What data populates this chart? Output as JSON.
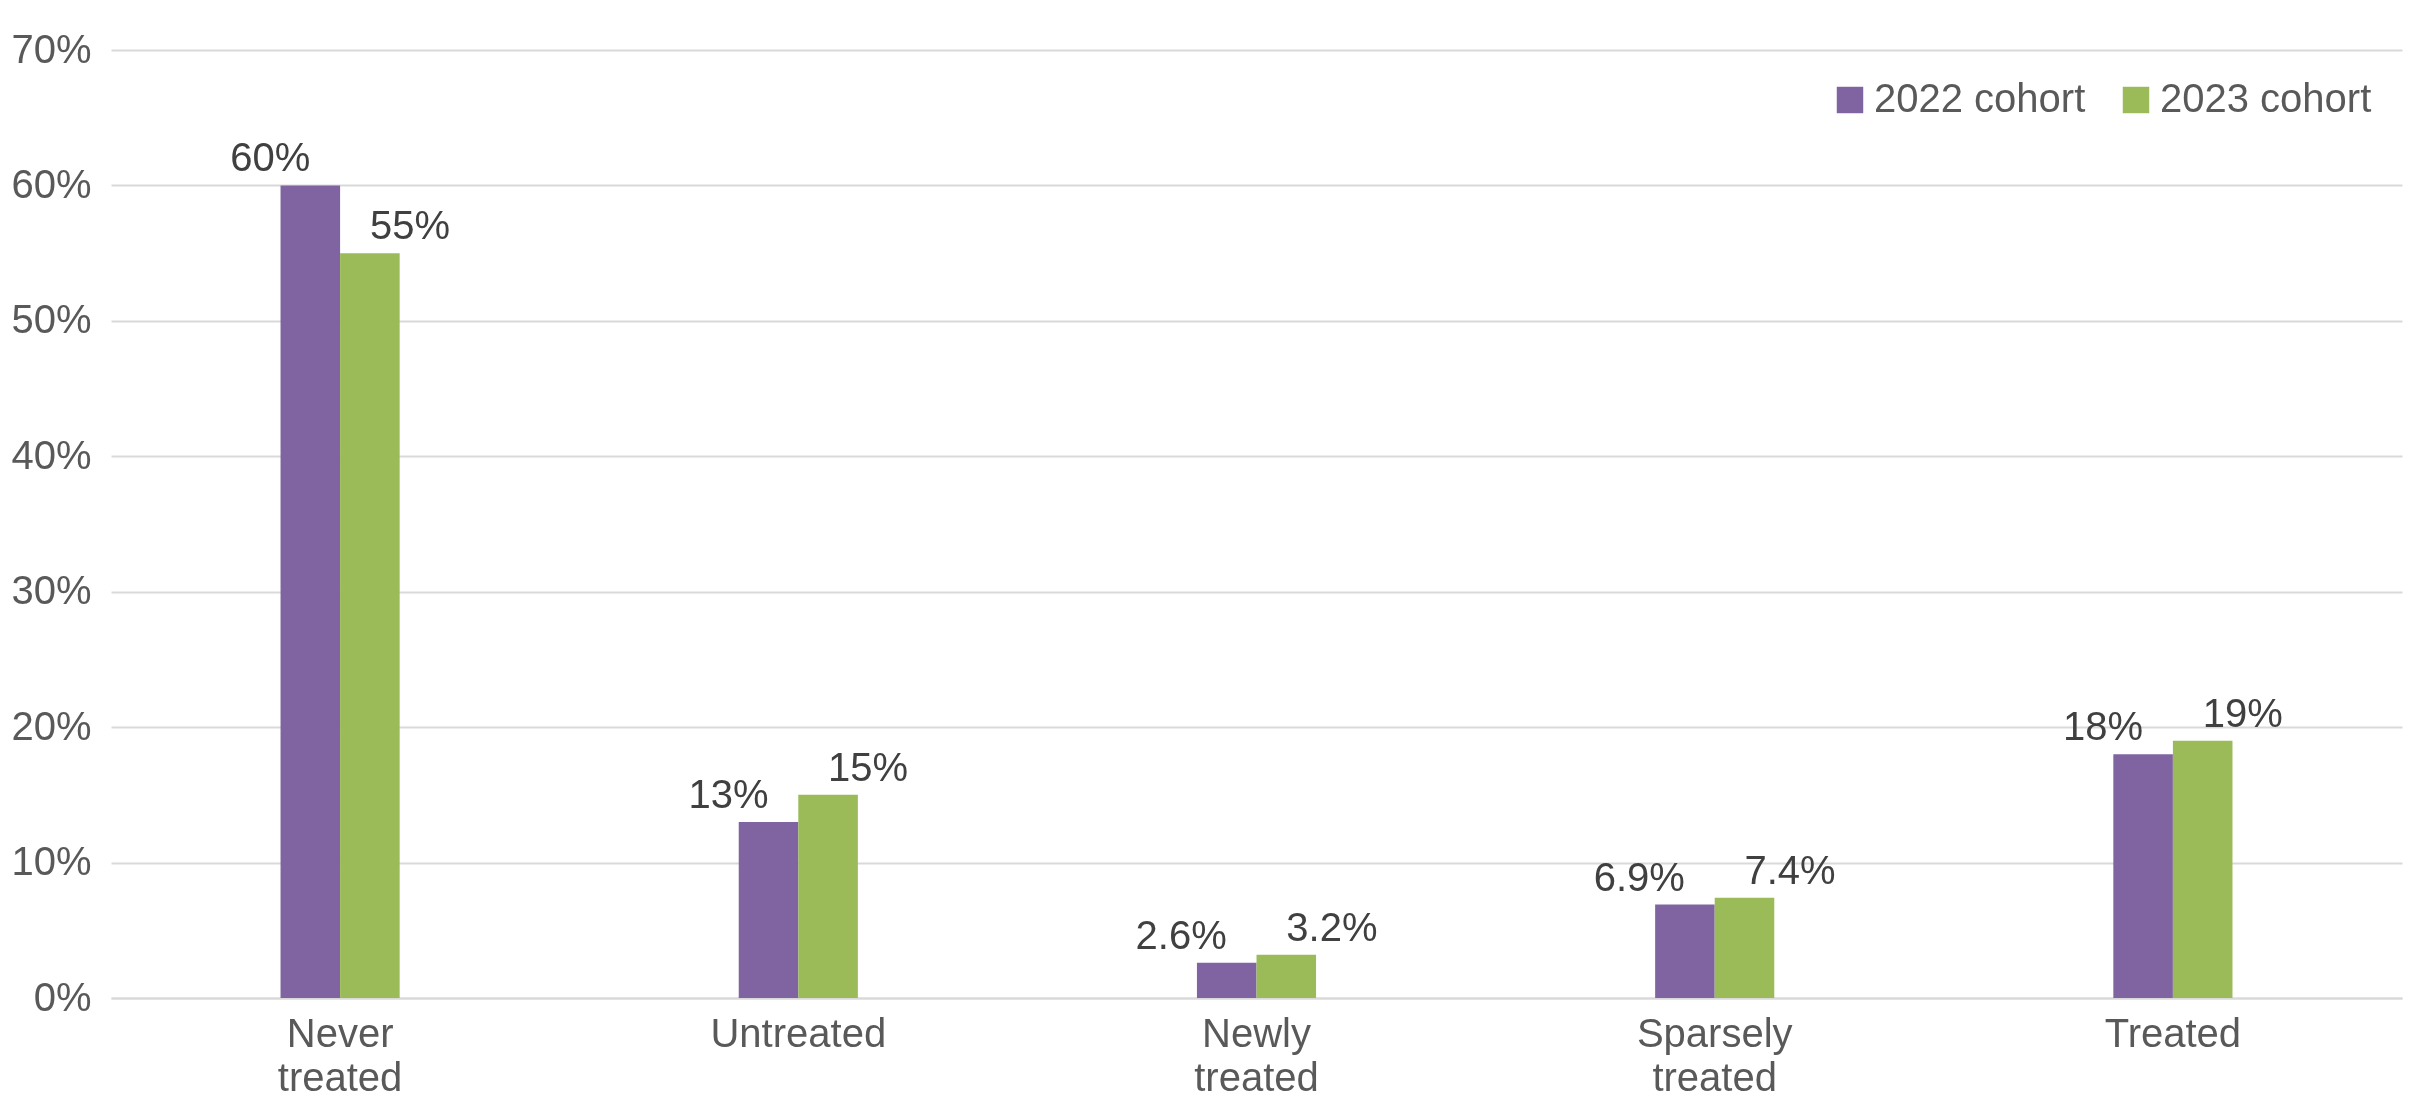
{
  "chart_data": {
    "type": "bar",
    "categories": [
      "Never treated",
      "Untreated",
      "Newly treated",
      "Sparsely treated",
      "Treated"
    ],
    "series": [
      {
        "name": "2022 cohort",
        "color": "#8064a2",
        "values": [
          60,
          13,
          2.6,
          6.9,
          18
        ],
        "value_labels": [
          "60%",
          "13%",
          "2.6%",
          "6.9%",
          "18%"
        ]
      },
      {
        "name": "2023 cohort",
        "color": "#9bbb59",
        "values": [
          55,
          15,
          3.2,
          7.4,
          19
        ],
        "value_labels": [
          "55%",
          "15%",
          "3.2%",
          "7.4%",
          "19%"
        ]
      }
    ],
    "ylim": [
      0,
      70
    ],
    "yticks": [
      {
        "value": 0,
        "label": "0%"
      },
      {
        "value": 10,
        "label": "10%"
      },
      {
        "value": 20,
        "label": "20%"
      },
      {
        "value": 30,
        "label": "30%"
      },
      {
        "value": 40,
        "label": "40%"
      },
      {
        "value": 50,
        "label": "50%"
      },
      {
        "value": 60,
        "label": "60%"
      },
      {
        "value": 70,
        "label": "70%"
      }
    ],
    "grid": "y",
    "legend": "top right"
  }
}
